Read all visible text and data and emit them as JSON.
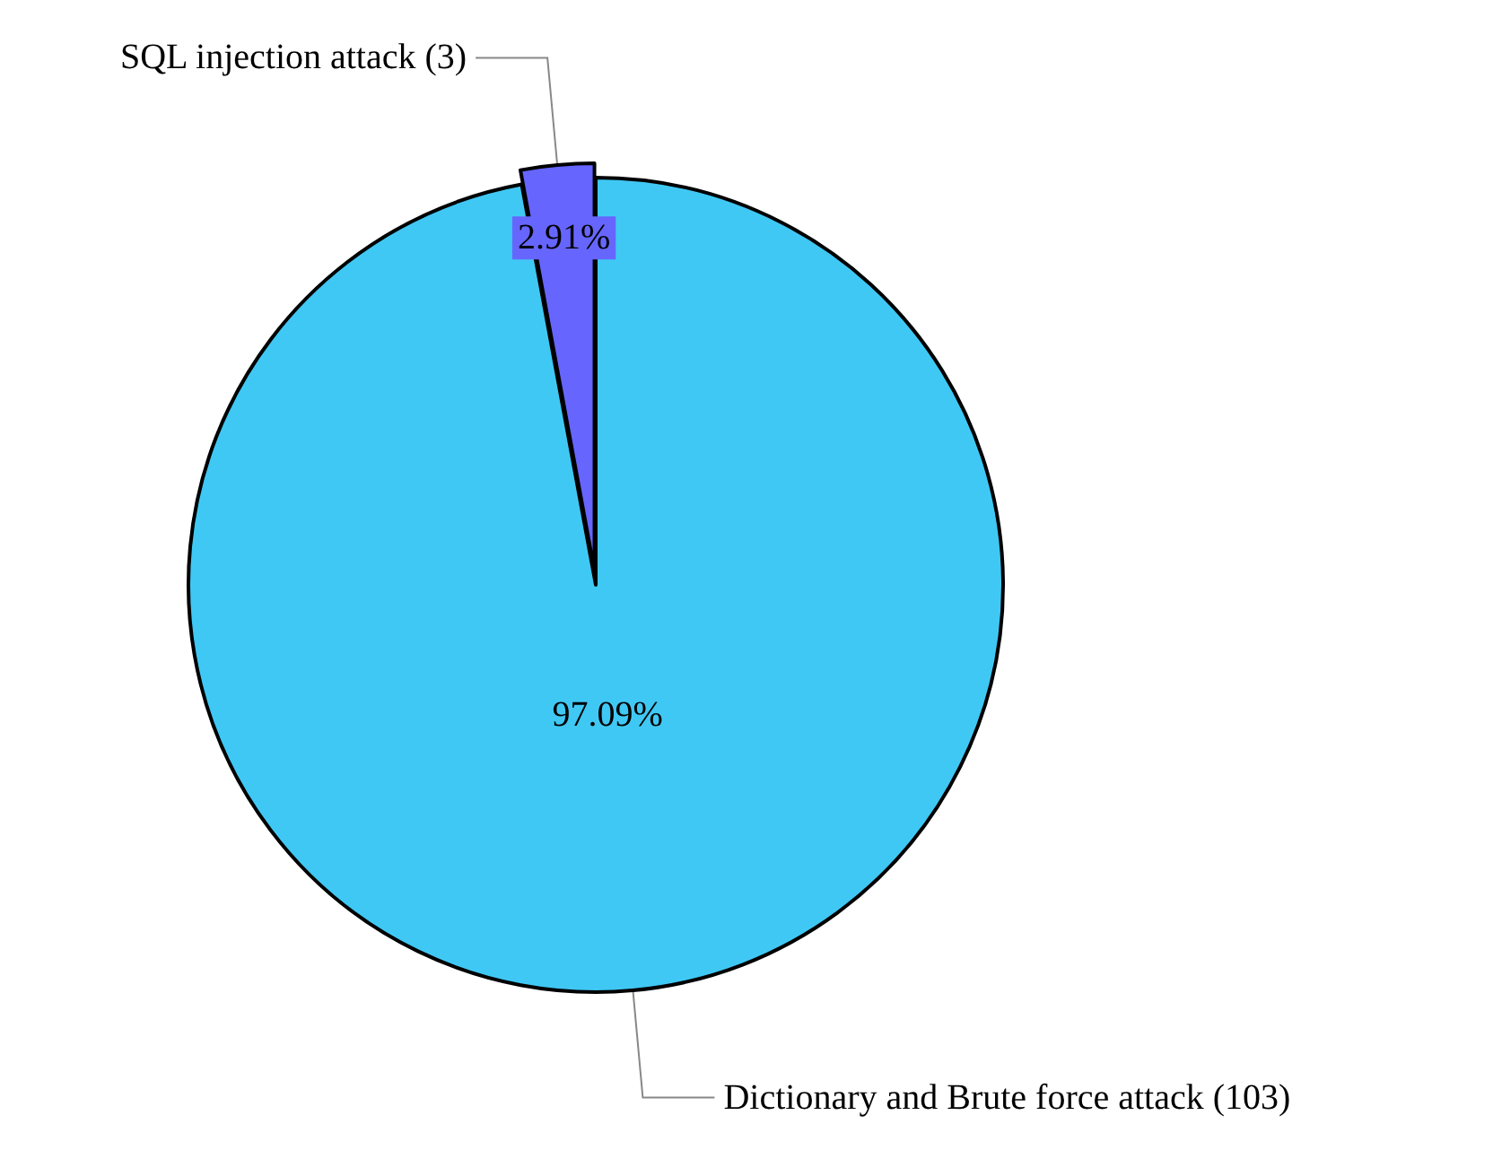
{
  "chart_data": {
    "type": "pie",
    "categories": [
      "SQL injection attack (3)",
      "Dictionary and Brute force attack (103)"
    ],
    "values": [
      2.91,
      97.09
    ],
    "value_labels": [
      "2.91%",
      "97.09%"
    ],
    "colors": [
      "#6666ff",
      "#40c8f4"
    ],
    "legend": false
  }
}
